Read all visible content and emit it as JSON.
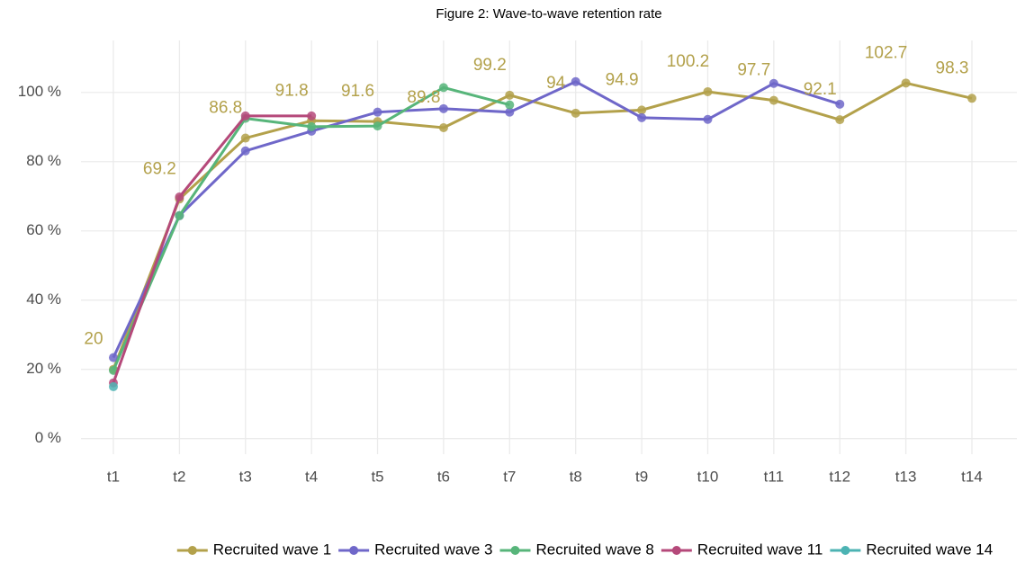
{
  "chart_data": {
    "type": "line",
    "title": "Figure 2: Wave-to-wave retention rate",
    "categories": [
      "t1",
      "t2",
      "t3",
      "t4",
      "t5",
      "t6",
      "t7",
      "t8",
      "t9",
      "t10",
      "t11",
      "t12",
      "t13",
      "t14"
    ],
    "ylim": [
      -4.5,
      115
    ],
    "yticks": [
      {
        "value": 0,
        "label": "0 %"
      },
      {
        "value": 20,
        "label": "20 %"
      },
      {
        "value": 40,
        "label": "40 %"
      },
      {
        "value": 60,
        "label": "60 %"
      },
      {
        "value": 80,
        "label": "80 %"
      },
      {
        "value": 100,
        "label": "100 %"
      }
    ],
    "grid": true,
    "legend": "bottom",
    "series": [
      {
        "name": "Recruited wave 1",
        "color": "#b3a14b",
        "show_labels": true,
        "values": [
          20,
          69.2,
          86.8,
          91.8,
          91.6,
          89.8,
          99.2,
          94,
          94.9,
          100.2,
          97.7,
          92.1,
          102.7,
          98.3
        ]
      },
      {
        "name": "Recruited wave 3",
        "color": "#6f67c9",
        "values": [
          23.4,
          64.4,
          83.1,
          88.8,
          94.3,
          95.3,
          94.3,
          103.1,
          92.7,
          92.2,
          102.6,
          96.6,
          null,
          null
        ]
      },
      {
        "name": "Recruited wave 8",
        "color": "#57b57a",
        "values": [
          19.7,
          64.4,
          92.5,
          90.1,
          90.3,
          101.4,
          96.4,
          null,
          null,
          null,
          null,
          null,
          null,
          null
        ]
      },
      {
        "name": "Recruited wave 11",
        "color": "#b5497a",
        "values": [
          16.1,
          69.8,
          93.2,
          93.2,
          null,
          null,
          null,
          null,
          null,
          null,
          null,
          null,
          null,
          null
        ]
      },
      {
        "name": "Recruited wave 14",
        "color": "#4cb3b3",
        "values": [
          15,
          null,
          null,
          null,
          null,
          null,
          null,
          null,
          null,
          null,
          null,
          null,
          null,
          null
        ]
      }
    ]
  }
}
